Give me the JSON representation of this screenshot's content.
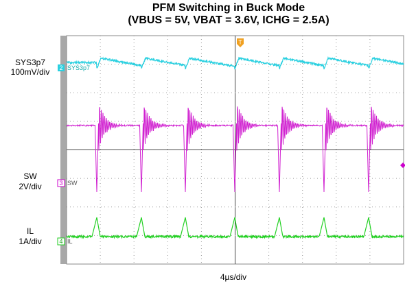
{
  "title": [
    "PFM Switching in Buck Mode",
    "(VBUS = 5V, VBAT = 3.6V, ICHG = 2.5A)"
  ],
  "channels": [
    {
      "name": "SYS3p7",
      "scale": "100mV/div",
      "number": "2",
      "tag": "SYS3p7"
    },
    {
      "name": "SW",
      "scale": "2V/div",
      "number": "3",
      "tag": "SW"
    },
    {
      "name": "IL",
      "scale": "1A/div",
      "number": "4",
      "tag": "IL"
    }
  ],
  "trigger": "T",
  "timebase": "4µs/div"
}
